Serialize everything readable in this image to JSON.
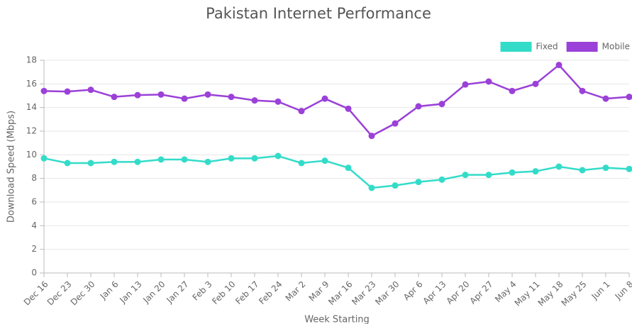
{
  "chart_data": {
    "type": "line",
    "title": "Pakistan Internet Performance",
    "x_label": "Week Starting",
    "y_label": "Download Speed (Mbps)",
    "categories": [
      "Dec 16",
      "Dec 23",
      "Dec 30",
      "Jan 6",
      "Jan 13",
      "Jan 20",
      "Jan 27",
      "Feb 3",
      "Feb 10",
      "Feb 17",
      "Feb 24",
      "Mar 2",
      "Mar 9",
      "Mar 16",
      "Mar 23",
      "Mar 30",
      "Apr 6",
      "Apr 13",
      "Apr 20",
      "Apr 27",
      "May 4",
      "May 11",
      "May 18",
      "May 25",
      "Jun 1",
      "Jun 8"
    ],
    "series": [
      {
        "name": "Fixed",
        "color": "#33dcc9",
        "values": [
          9.7,
          9.3,
          9.3,
          9.4,
          9.4,
          9.6,
          9.6,
          9.4,
          9.7,
          9.7,
          9.9,
          9.3,
          9.5,
          8.9,
          7.2,
          7.4,
          7.7,
          7.9,
          8.3,
          8.3,
          8.5,
          8.6,
          9.0,
          8.7,
          8.9,
          8.8
        ]
      },
      {
        "name": "Mobile",
        "color": "#9b40d8",
        "values": [
          15.4,
          15.35,
          15.5,
          14.9,
          15.05,
          15.1,
          14.75,
          15.1,
          14.9,
          14.6,
          14.5,
          13.7,
          14.75,
          13.9,
          11.6,
          12.65,
          14.1,
          14.3,
          15.95,
          16.2,
          15.4,
          16.0,
          17.6,
          15.4,
          14.75,
          14.9
        ]
      }
    ],
    "ylim": [
      0,
      18
    ],
    "yticks": [
      0,
      2,
      4,
      6,
      8,
      10,
      12,
      14,
      16,
      18
    ],
    "grid": true,
    "legend": "top-right"
  }
}
